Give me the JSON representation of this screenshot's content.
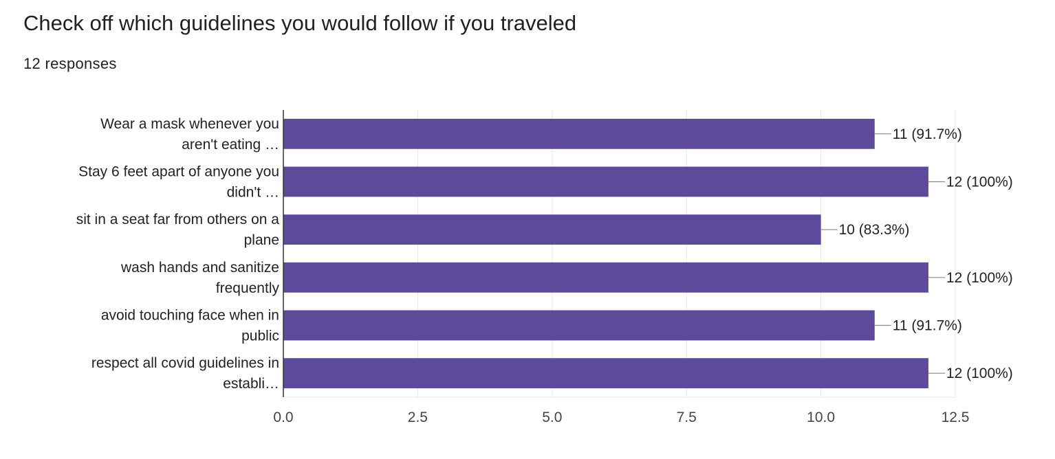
{
  "header": {
    "title": "Check off which guidelines you would follow if you traveled",
    "subtitle": "12 responses"
  },
  "chart_data": {
    "type": "bar",
    "orientation": "horizontal",
    "categories": [
      [
        "Wear a mask whenever you",
        "aren't eating …"
      ],
      [
        "Stay 6 feet apart of anyone you",
        "didn't …"
      ],
      [
        "sit in a seat far from others on a",
        "plane"
      ],
      [
        "wash hands and sanitize",
        "frequently"
      ],
      [
        "avoid touching face when in",
        "public"
      ],
      [
        "respect all covid guidelines in",
        "establi…"
      ]
    ],
    "values": [
      11,
      12,
      10,
      12,
      11,
      12
    ],
    "data_labels": [
      "11 (91.7%)",
      "12 (100%)",
      "10 (83.3%)",
      "12 (100%)",
      "11 (91.7%)",
      "12 (100%)"
    ],
    "xlim": [
      0,
      12.5
    ],
    "xticks": [
      0,
      2.5,
      5,
      7.5,
      10,
      12.5
    ],
    "xtick_labels": [
      "0.0",
      "2.5",
      "5.0",
      "7.5",
      "10.0",
      "12.5"
    ],
    "grid": true,
    "colors": {
      "bar": "#5e4a9b",
      "grid": "#e8e8e8",
      "axis": "#333333",
      "leader": "#888888"
    }
  }
}
